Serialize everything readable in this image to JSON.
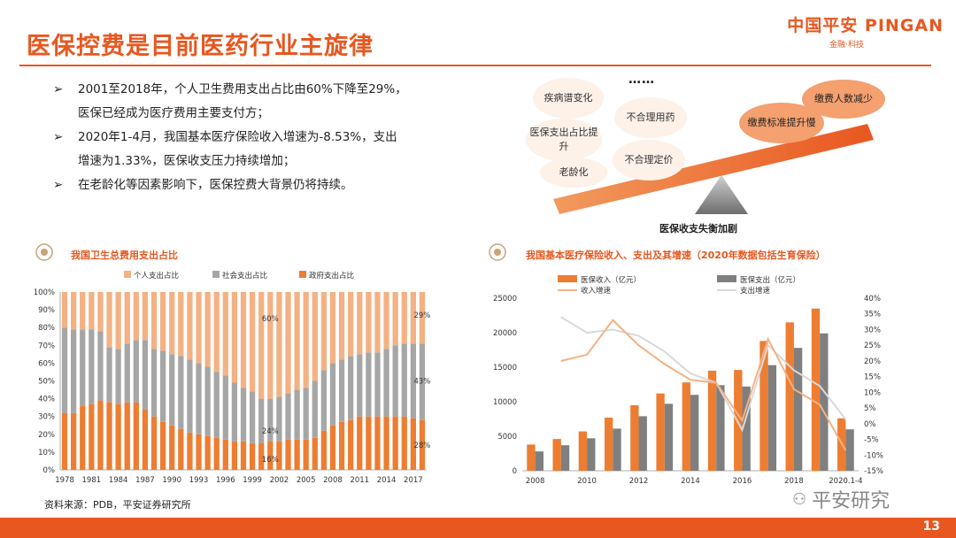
{
  "title": "医保控费是目前医药行业主旋律",
  "logo": {
    "main": "中国平安 PINGAN",
    "sub": "金融·科技"
  },
  "bullets": [
    {
      "line1": "2001至2018年，个人卫生费用支出占比由60%下降至29%，",
      "line2": "医保已经成为医疗费用主要支付方；"
    },
    {
      "line1": "2020年1-4月，我国基本医疗保险收入增速为-8.53%，支出",
      "line2": "增速为1.33%，医保收支压力持续增加；"
    },
    {
      "line1": "在老龄化等因素影响下，医保控费大背景仍将持续。",
      "line2": ""
    }
  ],
  "bullet_arrow": "➢",
  "diagram": {
    "dots": "……",
    "clouds": [
      "疾病谱变化",
      "医保支出占比提升",
      "老龄化",
      "不合理用药",
      "不合理定价",
      "缴费标准提升慢",
      "缴费人数减少"
    ],
    "caption": "医保收支失衡加剧"
  },
  "chart_data": [
    {
      "type": "bar",
      "title": "我国卫生总费用支出占比",
      "stacked": true,
      "legend": [
        "个人支出占比",
        "社会支出占比",
        "政府支出占比"
      ],
      "colors": {
        "personal": "#f4b183",
        "social": "#a6a6a6",
        "gov": "#ed7d31"
      },
      "years": [
        1978,
        1979,
        1980,
        1981,
        1982,
        1983,
        1984,
        1985,
        1986,
        1987,
        1988,
        1989,
        1990,
        1991,
        1992,
        1993,
        1994,
        1995,
        1996,
        1997,
        1998,
        1999,
        2000,
        2001,
        2002,
        2003,
        2004,
        2005,
        2006,
        2007,
        2008,
        2009,
        2010,
        2011,
        2012,
        2013,
        2014,
        2015,
        2016,
        2017,
        2018
      ],
      "gov": [
        32,
        32,
        36,
        37,
        39,
        38,
        37,
        38,
        38,
        34,
        30,
        27,
        25,
        23,
        21,
        20,
        19,
        18,
        17,
        16,
        16,
        15,
        15,
        16,
        16,
        17,
        17,
        17,
        18,
        22,
        25,
        27,
        28,
        30,
        30,
        30,
        30,
        30,
        30,
        29,
        28
      ],
      "social": [
        48,
        47,
        43,
        42,
        39,
        31,
        31,
        33,
        35,
        39,
        38,
        40,
        40,
        41,
        41,
        40,
        39,
        37,
        36,
        33,
        30,
        29,
        25,
        24,
        25,
        26,
        28,
        29,
        32,
        34,
        35,
        35,
        36,
        35,
        36,
        36,
        38,
        40,
        41,
        42,
        43
      ],
      "xticks": [
        "1978",
        "1981",
        "1984",
        "1987",
        "1990",
        "1993",
        "1996",
        "1999",
        "2002",
        "2005",
        "2008",
        "2011",
        "2014",
        "2017"
      ],
      "yticks": [
        "0%",
        "10%",
        "20%",
        "30%",
        "40%",
        "50%",
        "60%",
        "70%",
        "80%",
        "90%",
        "100%"
      ],
      "annotations": [
        "60%",
        "24%",
        "16%",
        "29%",
        "43%",
        "28%"
      ]
    },
    {
      "type": "bar+line",
      "title": "我国基本医疗保险收入、支出及其增速（2020年数据包括生育保险）",
      "legend": [
        "医保收入（亿元）",
        "医保支出（亿元）",
        "收入增速",
        "支出增速"
      ],
      "colors": {
        "income": "#ed7d31",
        "expense": "#7f7f7f",
        "income_growth": "#f4b183",
        "expense_growth": "#d9d9d9"
      },
      "categories": [
        "2008",
        "2009",
        "2010",
        "2011",
        "2012",
        "2013",
        "2014",
        "2015",
        "2016",
        "2017",
        "2018",
        "2019",
        "2020.1-4"
      ],
      "income": [
        3800,
        4600,
        5700,
        7700,
        9500,
        11200,
        12800,
        14500,
        14600,
        18800,
        21500,
        23500,
        7600
      ],
      "expense": [
        2800,
        3700,
        4700,
        6100,
        7900,
        9700,
        11000,
        12400,
        12200,
        15300,
        17800,
        19900,
        6000
      ],
      "income_growth": [
        20,
        22,
        33,
        25,
        19,
        14,
        13,
        1,
        27,
        11,
        6,
        -8.53
      ],
      "expense_growth": [
        34,
        29,
        30,
        28,
        23,
        16,
        13,
        -2,
        25,
        17,
        12,
        1.33
      ],
      "y_left": [
        "0",
        "5000",
        "10000",
        "15000",
        "20000",
        "25000"
      ],
      "y_right": [
        "40%",
        "35%",
        "30%",
        "25%",
        "20%",
        "15%",
        "10%",
        "5%",
        "0%",
        "-5%",
        "-10%",
        "-15%"
      ],
      "xticks": [
        "2008",
        "2010",
        "2012",
        "2014",
        "2016",
        "2018",
        "2020.1-4"
      ]
    }
  ],
  "source": "资料来源：PDB，平安证券研究所",
  "watermark": "平安研究",
  "page_number": "13"
}
